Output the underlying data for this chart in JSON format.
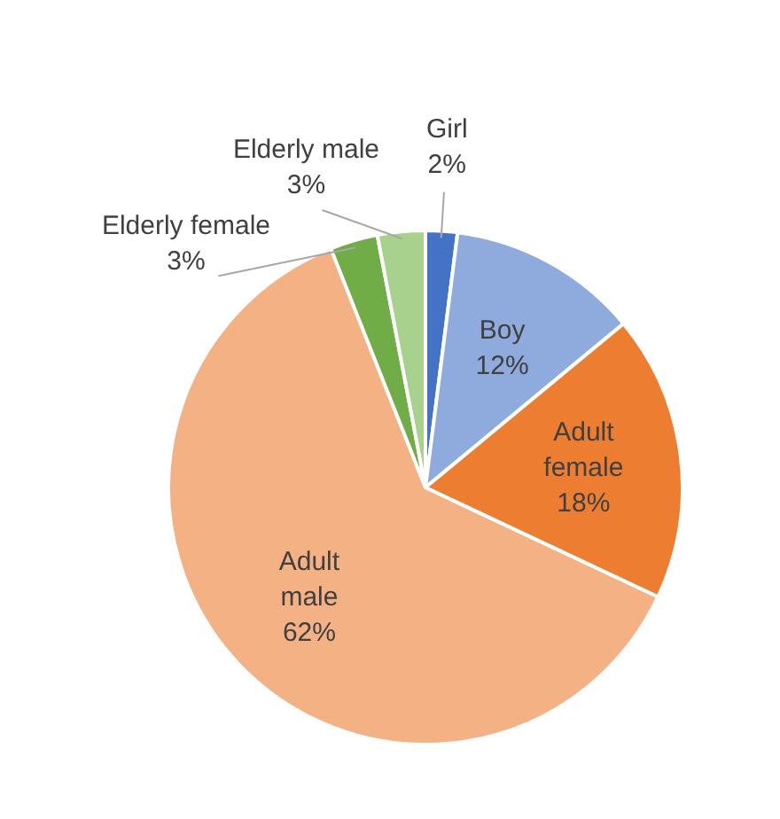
{
  "chart_data": {
    "type": "pie",
    "categories": [
      "Girl",
      "Boy",
      "Adult female",
      "Adult male",
      "Elderly female",
      "Elderly male"
    ],
    "values": [
      2,
      12,
      18,
      62,
      3,
      3
    ],
    "value_labels": [
      "2%",
      "12%",
      "18%",
      "62%",
      "3%",
      "3%"
    ],
    "colors": [
      "#4472c4",
      "#8faadc",
      "#ed7d31",
      "#f4b183",
      "#70ad47",
      "#a9d18e"
    ]
  }
}
